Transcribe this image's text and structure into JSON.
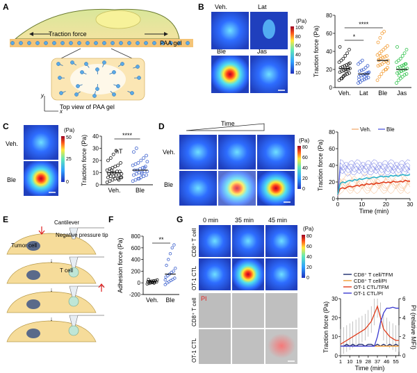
{
  "panels": {
    "A": {
      "letter": "A",
      "traction_label": "Traction force",
      "gel_label": "PAA gel",
      "top_view_label": "Top view of PAA gel",
      "axis_y": "y",
      "axis_x": "x"
    },
    "B": {
      "letter": "B",
      "conditions": [
        "Veh.",
        "Lat",
        "Ble",
        "Jas"
      ],
      "colorbar": {
        "unit": "(Pa)",
        "ticks": [
          "100",
          "80",
          "60",
          "40",
          "20",
          "10"
        ]
      },
      "chart_data": {
        "type": "scatter",
        "ylabel": "Traction force (Pa)",
        "categories": [
          "Veh.",
          "Lat",
          "Ble",
          "Jas"
        ],
        "ylim": [
          0,
          80
        ],
        "yticks": [
          "0",
          "20",
          "40",
          "60",
          "80"
        ],
        "means": [
          21,
          15,
          30,
          20
        ],
        "series": [
          {
            "name": "Veh.",
            "color": "#111111",
            "values": [
              8,
              10,
              12,
              14,
              15,
              16,
              17,
              18,
              19,
              20,
              20,
              21,
              22,
              23,
              24,
              25,
              26,
              28,
              30,
              32,
              35,
              38,
              42,
              45,
              10,
              13,
              18,
              22,
              27
            ]
          },
          {
            "name": "Lat",
            "color": "#3a5fcd",
            "values": [
              5,
              6,
              8,
              9,
              10,
              11,
              12,
              13,
              14,
              15,
              16,
              17,
              18,
              19,
              20,
              22,
              24,
              26,
              28,
              30,
              12,
              14,
              16,
              9
            ]
          },
          {
            "name": "Ble",
            "color": "#f39c33",
            "values": [
              8,
              12,
              15,
              18,
              20,
              22,
              24,
              25,
              26,
              28,
              29,
              30,
              31,
              32,
              33,
              34,
              35,
              36,
              38,
              40,
              42,
              44,
              46,
              50,
              55,
              60,
              62,
              20,
              27,
              30,
              35
            ]
          },
          {
            "name": "Jas",
            "color": "#2ec24a",
            "values": [
              5,
              8,
              10,
              12,
              14,
              15,
              16,
              17,
              18,
              19,
              20,
              21,
              22,
              23,
              24,
              25,
              26,
              28,
              30,
              32,
              35,
              38,
              42,
              45,
              13,
              18,
              22,
              26
            ]
          }
        ],
        "significance": [
          {
            "pair": "Veh.-Lat",
            "stars": "*"
          },
          {
            "pair": "Veh.-Ble",
            "stars": "****"
          }
        ]
      }
    },
    "C": {
      "letter": "C",
      "conditions": [
        "Veh.",
        "Ble"
      ],
      "colorbar": {
        "unit": "(Pa)",
        "ticks": [
          "50",
          "25",
          "0"
        ]
      },
      "annotation": "hT",
      "chart_data": {
        "type": "scatter",
        "ylabel": "Traction force (Pa)",
        "categories": [
          "Veh.",
          "Ble"
        ],
        "ylim": [
          0,
          40
        ],
        "yticks": [
          "0",
          "10",
          "20",
          "30",
          "40"
        ],
        "means": [
          10,
          12
        ],
        "series": [
          {
            "name": "Veh.",
            "color": "#111111",
            "values": [
              2,
              3,
              4,
              5,
              5,
              6,
              6,
              7,
              7,
              8,
              8,
              9,
              9,
              10,
              10,
              11,
              11,
              12,
              13,
              14,
              15,
              16,
              18,
              20,
              22,
              25,
              28,
              4,
              6,
              9,
              12
            ]
          },
          {
            "name": "Ble",
            "color": "#3a5fcd",
            "values": [
              3,
              4,
              5,
              6,
              7,
              8,
              8,
              9,
              10,
              10,
              11,
              11,
              12,
              12,
              13,
              14,
              15,
              16,
              17,
              18,
              20,
              22,
              24,
              27,
              30,
              5,
              9,
              14,
              19
            ]
          }
        ],
        "significance": [
          {
            "pair": "Veh.-Ble",
            "stars": "****"
          }
        ]
      }
    },
    "D": {
      "letter": "D",
      "time_label": "Time",
      "conditions": [
        "Veh.",
        "Ble"
      ],
      "colorbar": {
        "unit": "(Pa)",
        "ticks": [
          "80",
          "60",
          "40",
          "20",
          "0"
        ]
      },
      "chart_data": {
        "type": "line",
        "xlabel": "Time (min)",
        "ylabel": "Traction force (Pa)",
        "xlim": [
          0,
          30
        ],
        "ylim": [
          0,
          80
        ],
        "xticks": [
          "0",
          "10",
          "20",
          "30"
        ],
        "yticks": [
          "0",
          "20",
          "40",
          "60",
          "80"
        ],
        "legend": [
          "Veh.",
          "Ble"
        ],
        "x": [
          0,
          1,
          2,
          3,
          4,
          5,
          6,
          7,
          8,
          9,
          10,
          11,
          12,
          13,
          14,
          15,
          16,
          17,
          18,
          19,
          20,
          21,
          22,
          23,
          24,
          25,
          26,
          27,
          28,
          29,
          30
        ],
        "series": [
          {
            "name": "Veh. mean",
            "color": "#e03b1a",
            "values": [
              5,
              12,
              13,
              12,
              14,
              15,
              14,
              15,
              16,
              15,
              17,
              16,
              18,
              17,
              18,
              17,
              19,
              18,
              19,
              20,
              19,
              20,
              19,
              21,
              20,
              20,
              21,
              20,
              22,
              21,
              21
            ]
          },
          {
            "name": "Ble mean",
            "color": "#2ab0c8",
            "values": [
              5,
              18,
              20,
              19,
              21,
              22,
              21,
              23,
              22,
              24,
              23,
              24,
              25,
              24,
              25,
              26,
              25,
              26,
              27,
              26,
              27,
              26,
              28,
              27,
              28,
              27,
              28,
              29,
              28,
              28,
              29
            ]
          }
        ]
      }
    },
    "E": {
      "letter": "E",
      "cantilever": "Cantilever",
      "negative_pressure": "Negative pressure tip",
      "tumor_cell": "Tumor cell",
      "t_cell": "T cell"
    },
    "F": {
      "letter": "F",
      "chart_data": {
        "type": "scatter",
        "ylabel": "Adhesion force (Pa)",
        "categories": [
          "Veh.",
          "Ble"
        ],
        "ylim": [
          -200,
          800
        ],
        "yticks": [
          "-200",
          "0",
          "200",
          "400",
          "600",
          "800"
        ],
        "means": [
          30,
          150
        ],
        "series": [
          {
            "name": "Veh.",
            "color": "#111111",
            "values": [
              -20,
              -10,
              0,
              5,
              10,
              15,
              20,
              25,
              30,
              35,
              40,
              50,
              60,
              0,
              10,
              -5
            ]
          },
          {
            "name": "Ble",
            "color": "#3a5fcd",
            "values": [
              -30,
              0,
              20,
              40,
              60,
              80,
              100,
              120,
              150,
              180,
              200,
              250,
              300,
              400,
              500,
              600,
              650,
              50
            ]
          }
        ],
        "significance": [
          {
            "pair": "Veh.-Ble",
            "stars": "**"
          }
        ]
      }
    },
    "G": {
      "letter": "G",
      "time_points": [
        "0 min",
        "35 min",
        "45 min"
      ],
      "row_labels": [
        "CD8⁺ T cell",
        "OT-1 CTL",
        "CD8⁺ T cell",
        "OT-1 CTL"
      ],
      "pi_label": "PI",
      "colorbar": {
        "unit": "(Pa)",
        "ticks": [
          "80",
          "60",
          "40",
          "20",
          "0"
        ]
      },
      "chart_data": {
        "type": "line",
        "xlabel": "Time (min)",
        "ylabel": "Traction force (Pa)",
        "ylabel_right": "PI (relative MFI)",
        "ylim": [
          0,
          30
        ],
        "ylim_right": [
          0,
          6
        ],
        "yticks": [
          "0",
          "10",
          "20",
          "30"
        ],
        "yticks_right": [
          "0",
          "2",
          "4",
          "6"
        ],
        "xticks": [
          "1",
          "10",
          "19",
          "28",
          "37",
          "46",
          "55"
        ],
        "x": [
          1,
          4,
          7,
          10,
          13,
          16,
          19,
          22,
          25,
          28,
          31,
          34,
          37,
          40,
          43,
          46,
          49,
          52,
          55,
          58
        ],
        "legend": [
          "CD8⁺ T cell/TFM",
          "CD8⁺ T cell/PI",
          "OT-1 CTL/TFM",
          "OT-1 CTL/PI"
        ],
        "series": [
          {
            "name": "CD8⁺ T cell/TFM",
            "color": "#1a2a6c",
            "values": [
              5,
              5,
              6,
              5,
              6,
              5,
              6,
              6,
              5,
              6,
              6,
              5,
              6,
              5,
              6,
              5,
              6,
              5,
              6,
              5
            ]
          },
          {
            "name": "CD8⁺ T cell/PI",
            "color": "#f39c33",
            "values": [
              1,
              1,
              1,
              1,
              1,
              1,
              1,
              1,
              1,
              1,
              1,
              1,
              1,
              1,
              1,
              1,
              1,
              1,
              1,
              1
            ]
          },
          {
            "name": "OT-1 CTL/TFM",
            "color": "#e03b1a",
            "values": [
              6,
              7,
              8,
              9,
              10,
              11,
              12,
              13,
              14,
              16,
              18,
              22,
              26,
              20,
              14,
              12,
              10,
              9,
              8,
              8
            ]
          },
          {
            "name": "OT-1 CTL/PI",
            "color": "#3a3ad0",
            "values": [
              1,
              1,
              1,
              1,
              1,
              1,
              1,
              1,
              1,
              1,
              1,
              1,
              2,
              3.5,
              4.5,
              5,
              5,
              5.1,
              5,
              5
            ]
          }
        ]
      }
    }
  }
}
